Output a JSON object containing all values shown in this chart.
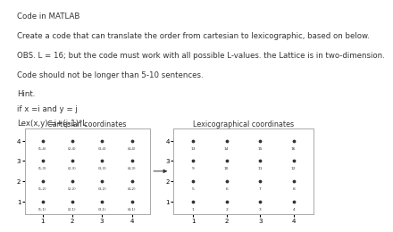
{
  "title_line1": "Code in MATLAB",
  "line2": "Create a code that can translate the order from cartesian to lexicographic, based on below.",
  "line3": "OBS. L = 16; but the code must work with all possible L-values. the Lattice is in two-dimension.",
  "line4": "Code should not be longer than 5-10 sentences.",
  "line5": "Hint.",
  "line6": "if x =i and y = j",
  "line7": "Lex(x,y)=i+(j-1)*L",
  "cart_title": "Cartesian coordinates",
  "lex_title": "Lexicographical coordinates",
  "L": 4,
  "background": "#ffffff",
  "text_color": "#333333",
  "dot_color": "#333333",
  "box_edgecolor": "#aaaaaa",
  "font_size_body": 6.2,
  "font_size_chart_title": 5.8,
  "font_size_tick": 5.0,
  "font_size_label": 3.0,
  "font_size_lex": 3.2,
  "markersize": 3.5
}
